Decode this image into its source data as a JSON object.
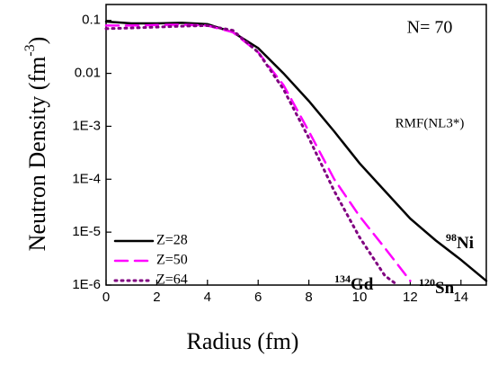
{
  "chart_data": {
    "type": "line",
    "x_label": "Radius (fm)",
    "y_label": {
      "text": "Neutron Density (fm",
      "superscript": "-3",
      "close": ")"
    },
    "annotations": [
      {
        "text": "N= 70"
      },
      {
        "text": "RMF(NL3*)"
      },
      {
        "superscript": "98",
        "text": "Ni"
      },
      {
        "superscript": "134",
        "text": "Gd"
      },
      {
        "superscript": "120",
        "text": "Sn"
      }
    ],
    "xlim": [
      0,
      15
    ],
    "xticks": [
      0,
      2,
      4,
      6,
      8,
      10,
      12,
      14
    ],
    "ylim": [
      1e-06,
      0.2
    ],
    "log_y": true,
    "yticks": [
      0.1,
      0.01,
      {
        "value": 0.001,
        "label": "1E-3"
      },
      {
        "value": 0.0001,
        "label": "1E-4"
      },
      {
        "value": 1e-05,
        "label": "1E-5"
      },
      {
        "value": 1e-06,
        "label": "1E-6"
      }
    ],
    "legend": "lower left",
    "series": [
      {
        "name": "Z=28",
        "color": "#000000",
        "dash": "solid",
        "x": [
          0,
          1,
          2,
          3,
          4,
          5,
          6,
          7,
          8,
          9,
          10,
          11,
          12,
          13,
          14,
          15
        ],
        "values": [
          0.095,
          0.088,
          0.088,
          0.09,
          0.085,
          0.06,
          0.03,
          0.01,
          0.003,
          0.0008,
          0.0002,
          6e-05,
          1.8e-05,
          7e-06,
          3e-06,
          1.2e-06
        ]
      },
      {
        "name": "Z=50",
        "color": "#ff00ff",
        "dash": "dashed",
        "x": [
          0,
          1,
          2,
          3,
          4,
          5,
          6,
          7,
          8,
          9,
          10,
          11,
          12
        ],
        "values": [
          0.08,
          0.08,
          0.082,
          0.083,
          0.08,
          0.06,
          0.025,
          0.006,
          0.0008,
          0.0001,
          2e-05,
          5e-06,
          1.2e-06
        ]
      },
      {
        "name": "Z=64",
        "color": "#800080",
        "dash": "dotted",
        "x": [
          0,
          1,
          2,
          3,
          4,
          5,
          6,
          7,
          8,
          9,
          10,
          11,
          11.5
        ],
        "values": [
          0.07,
          0.072,
          0.075,
          0.078,
          0.08,
          0.065,
          0.025,
          0.005,
          0.0006,
          6e-05,
          8e-06,
          1.5e-06,
          1e-06
        ]
      }
    ]
  }
}
